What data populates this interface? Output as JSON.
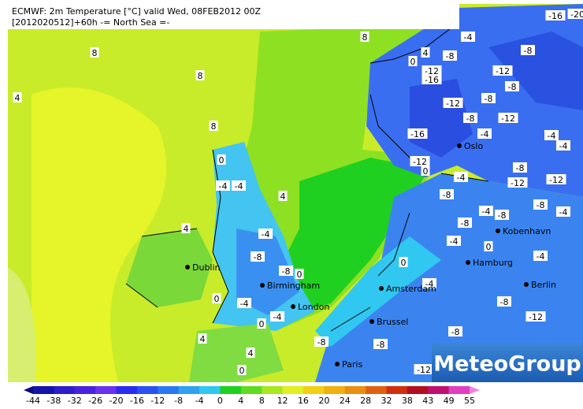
{
  "header": {
    "line1": "ECMWF: 2m Temperature [°C] valid Wed, 08FEB2012 00Z",
    "line2": "[2012020512]+60h -= North Sea =-"
  },
  "cities": [
    "Oslo",
    "Kobenhavn",
    "Hamburg",
    "Berlin",
    "Amsterdam",
    "Brussel",
    "Paris",
    "London",
    "Birmingham",
    "Dublin"
  ],
  "contour_labels": [
    "4",
    "8",
    "8",
    "8",
    "8",
    "0",
    "-4",
    "-4",
    "4",
    "4",
    "-4",
    "-8",
    "-8",
    "0",
    "0",
    "-4",
    "-4",
    "0",
    "4",
    "4",
    "0",
    "-8",
    "-8",
    "-12",
    "-8",
    "-4",
    "0",
    "0",
    "-12",
    "-16",
    "-12",
    "-8",
    "-4",
    "4",
    "0",
    "-12",
    "-16",
    "-8",
    "-8",
    "-12",
    "-8",
    "-12",
    "-8",
    "-4",
    "-4",
    "-4",
    "-4",
    "-8",
    "-8",
    "-12",
    "-12",
    "-8",
    "-4",
    "-4",
    "-8",
    "-8",
    "-4",
    "0",
    "-4",
    "-8",
    "-12",
    "-16",
    "-20"
  ],
  "logo": "MeteoGroup",
  "legend": {
    "labels": [
      -44,
      -38,
      -32,
      -26,
      -20,
      -16,
      -12,
      -8,
      -4,
      0,
      4,
      8,
      12,
      16,
      20,
      24,
      28,
      32,
      38,
      43,
      49,
      55
    ]
  }
}
